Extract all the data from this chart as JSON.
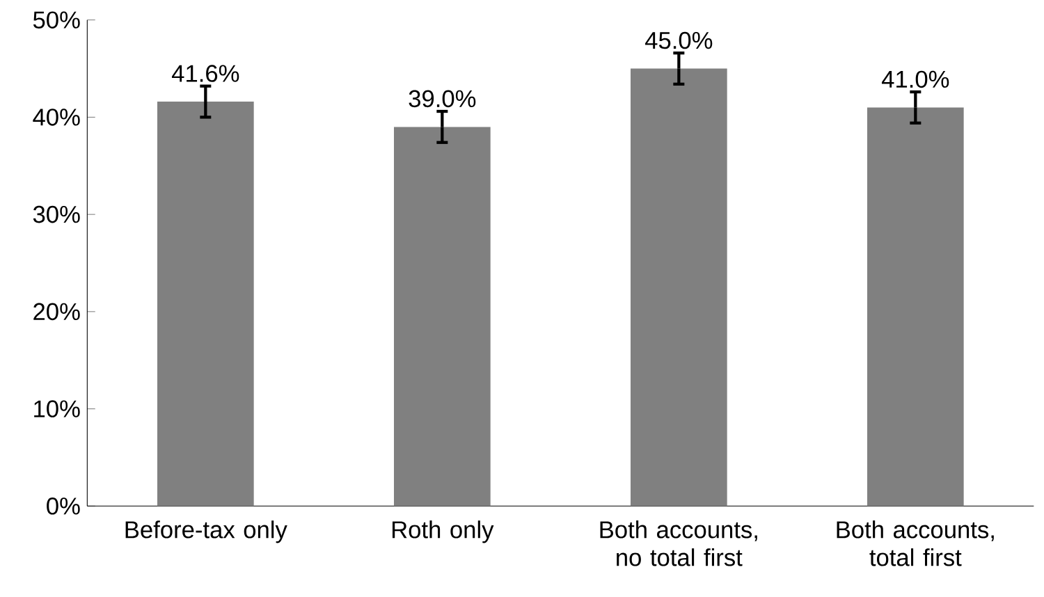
{
  "chart_data": {
    "type": "bar",
    "categories": [
      "Before-tax only",
      "Roth only",
      "Both accounts, no total first",
      "Both accounts, total first"
    ],
    "values": [
      41.6,
      39.0,
      45.0,
      41.0
    ],
    "errors": [
      1.6,
      1.6,
      1.6,
      1.6
    ],
    "value_labels": [
      "41.6%",
      "39.0%",
      "45.0%",
      "41.0%"
    ],
    "color": "#808080",
    "ylim": [
      0,
      50
    ],
    "yticks": [
      {
        "value": 0,
        "label": "0%"
      },
      {
        "value": 10,
        "label": "10%"
      },
      {
        "value": 20,
        "label": "20%"
      },
      {
        "value": 30,
        "label": "30%"
      },
      {
        "value": 40,
        "label": "40%"
      },
      {
        "value": 50,
        "label": "50%"
      }
    ],
    "grid": false
  }
}
